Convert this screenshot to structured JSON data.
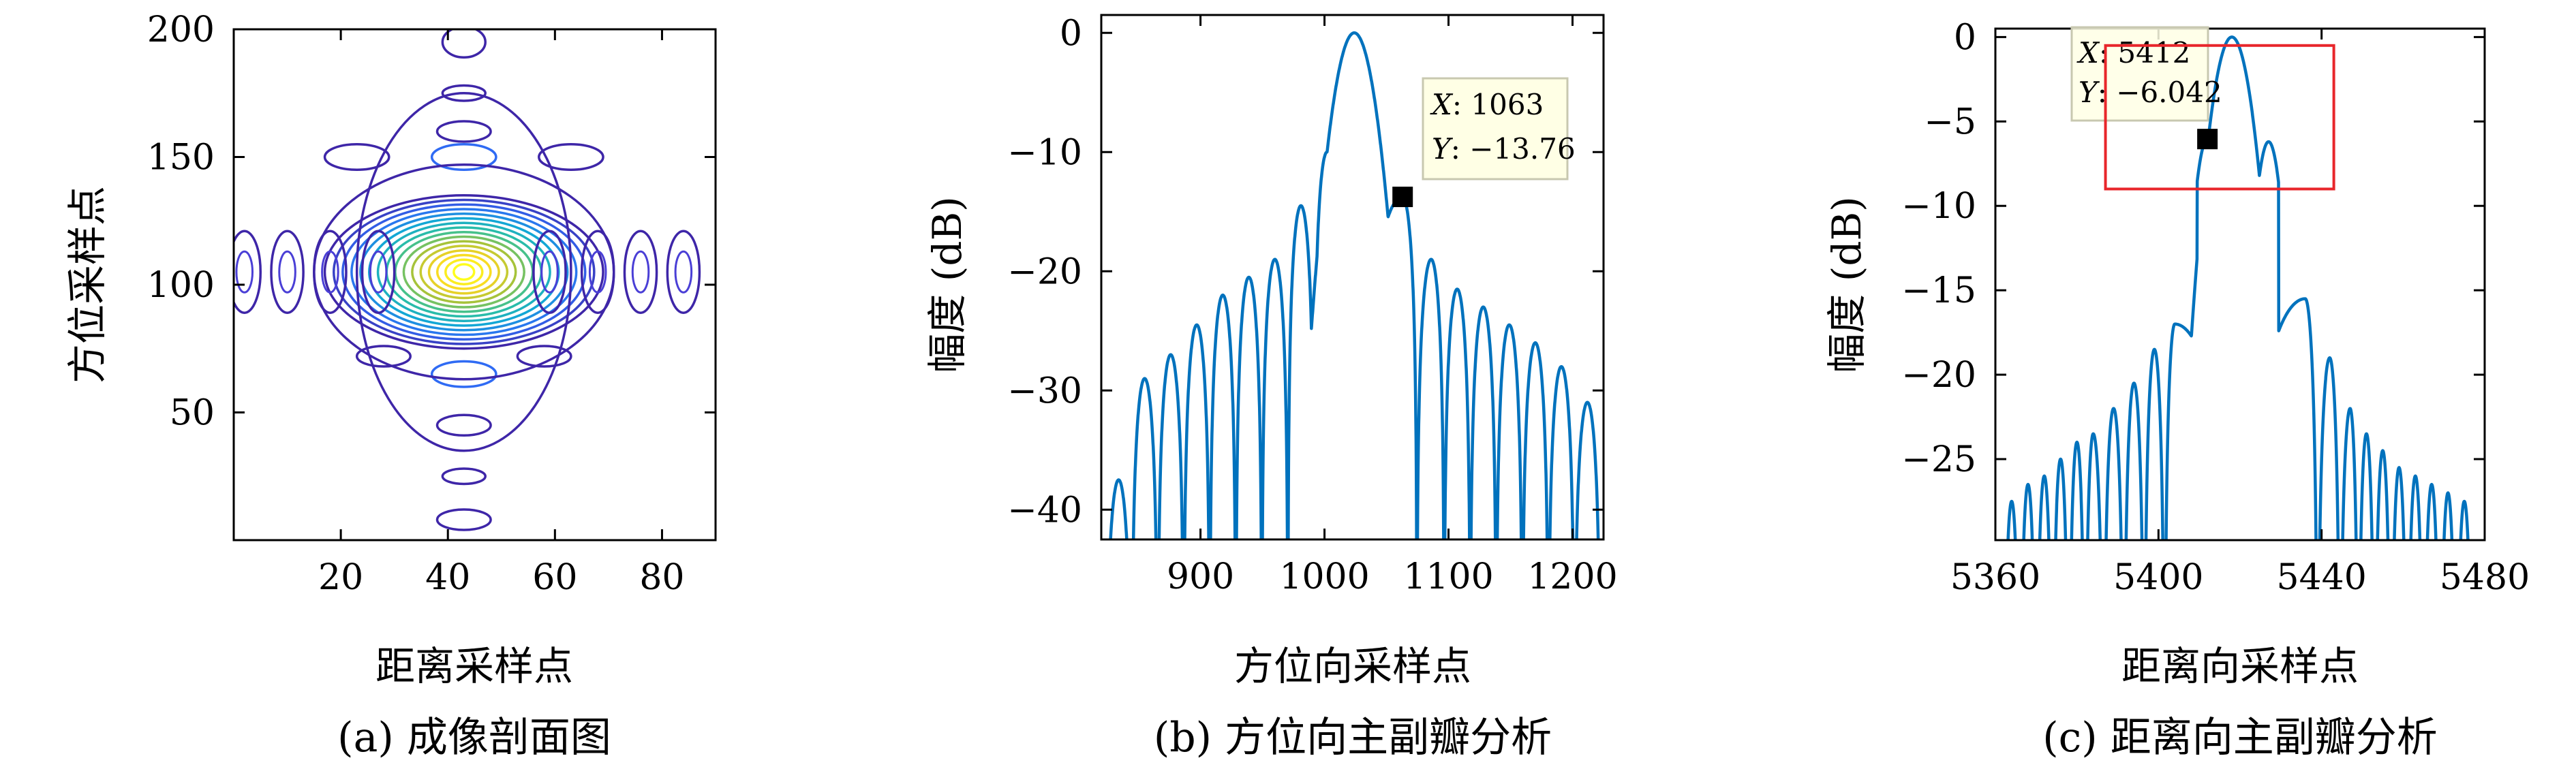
{
  "chart_data": [
    {
      "type": "heatmap",
      "subtype": "contour",
      "caption": "(a) 成像剖面图",
      "xlabel": "距离采样点",
      "ylabel": "方位采样点",
      "xlim": [
        0,
        90
      ],
      "ylim": [
        0,
        200
      ],
      "xticks": [
        "20",
        "40",
        "60",
        "80"
      ],
      "yticks": [
        "50",
        "100",
        "150",
        "200"
      ],
      "peak": [
        43,
        105
      ],
      "colormap": [
        "#3e26a8",
        "#2f6bf4",
        "#13a7d5",
        "#2fc19f",
        "#a6c33a",
        "#f6d424",
        "#fefd1e"
      ]
    },
    {
      "type": "line",
      "caption": "(b) 方位向主副瓣分析",
      "xlabel": "方位向采样点",
      "ylabel": "幅度 (dB)",
      "xlim": [
        820,
        1225
      ],
      "ylim": [
        -42.5,
        1.5
      ],
      "xticks": [
        "900",
        "1000",
        "1100",
        "1200"
      ],
      "yticks": [
        "0",
        "−10",
        "−20",
        "−30",
        "−40"
      ],
      "line_color": "#0072bd",
      "mainlobe": {
        "x": 1024,
        "y": 0
      },
      "sidelobes": [
        {
          "x": 834,
          "y": -37.5
        },
        {
          "x": 855,
          "y": -29.0
        },
        {
          "x": 876,
          "y": -27.0
        },
        {
          "x": 897,
          "y": -24.5
        },
        {
          "x": 918,
          "y": -22.0
        },
        {
          "x": 939,
          "y": -20.5
        },
        {
          "x": 960,
          "y": -19.0
        },
        {
          "x": 981,
          "y": -14.5
        },
        {
          "x": 1002,
          "y": -10.0
        },
        {
          "x": 1063,
          "y": -13.76
        },
        {
          "x": 1086,
          "y": -19.0
        },
        {
          "x": 1107,
          "y": -21.5
        },
        {
          "x": 1128,
          "y": -23.0
        },
        {
          "x": 1149,
          "y": -24.5
        },
        {
          "x": 1170,
          "y": -26.0
        },
        {
          "x": 1191,
          "y": -28.0
        },
        {
          "x": 1212,
          "y": -31.0
        }
      ],
      "datatip": {
        "x_label": "X",
        "x_value": "1063",
        "y_label": "Y",
        "y_value": "−13.76",
        "x": 1063,
        "y": -13.76
      }
    },
    {
      "type": "line",
      "caption": "(c) 距离向主副瓣分析",
      "xlabel": "距离向采样点",
      "ylabel": "幅度 (dB)",
      "xlim": [
        5360,
        5480
      ],
      "ylim": [
        -29.8,
        0.5
      ],
      "xticks": [
        "5360",
        "5400",
        "5440",
        "5480"
      ],
      "yticks": [
        "0",
        "−5",
        "−10",
        "−15",
        "−20",
        "−25"
      ],
      "line_color": "#0072bd",
      "mainlobe": {
        "x": 5418,
        "y": 0
      },
      "shoulders": [
        {
          "x": 5412,
          "y": -6.04
        },
        {
          "x": 5427,
          "y": -6.2
        }
      ],
      "sidelobes": [
        {
          "x": 5364,
          "y": -27.5
        },
        {
          "x": 5368,
          "y": -26.5
        },
        {
          "x": 5372,
          "y": -26.0
        },
        {
          "x": 5376,
          "y": -25.0
        },
        {
          "x": 5380,
          "y": -24.0
        },
        {
          "x": 5384,
          "y": -23.5
        },
        {
          "x": 5389,
          "y": -22.0
        },
        {
          "x": 5394,
          "y": -20.5
        },
        {
          "x": 5399,
          "y": -18.5
        },
        {
          "x": 5404,
          "y": -17.0
        },
        {
          "x": 5436,
          "y": -15.5
        },
        {
          "x": 5442,
          "y": -19.0
        },
        {
          "x": 5447,
          "y": -22.0
        },
        {
          "x": 5451,
          "y": -23.5
        },
        {
          "x": 5455,
          "y": -24.5
        },
        {
          "x": 5459,
          "y": -25.5
        },
        {
          "x": 5463,
          "y": -26.0
        },
        {
          "x": 5467,
          "y": -26.5
        },
        {
          "x": 5471,
          "y": -27.0
        },
        {
          "x": 5475,
          "y": -27.5
        }
      ],
      "datatip": {
        "x_label": "X",
        "x_value": "5412",
        "y_label": "Y",
        "y_value": "−6.042",
        "x": 5412,
        "y": -6.042
      },
      "highlight_box": {
        "x_range": [
          5387,
          5443
        ],
        "y_range": [
          -9.0,
          -0.5
        ],
        "color": "#e8262b"
      }
    }
  ]
}
